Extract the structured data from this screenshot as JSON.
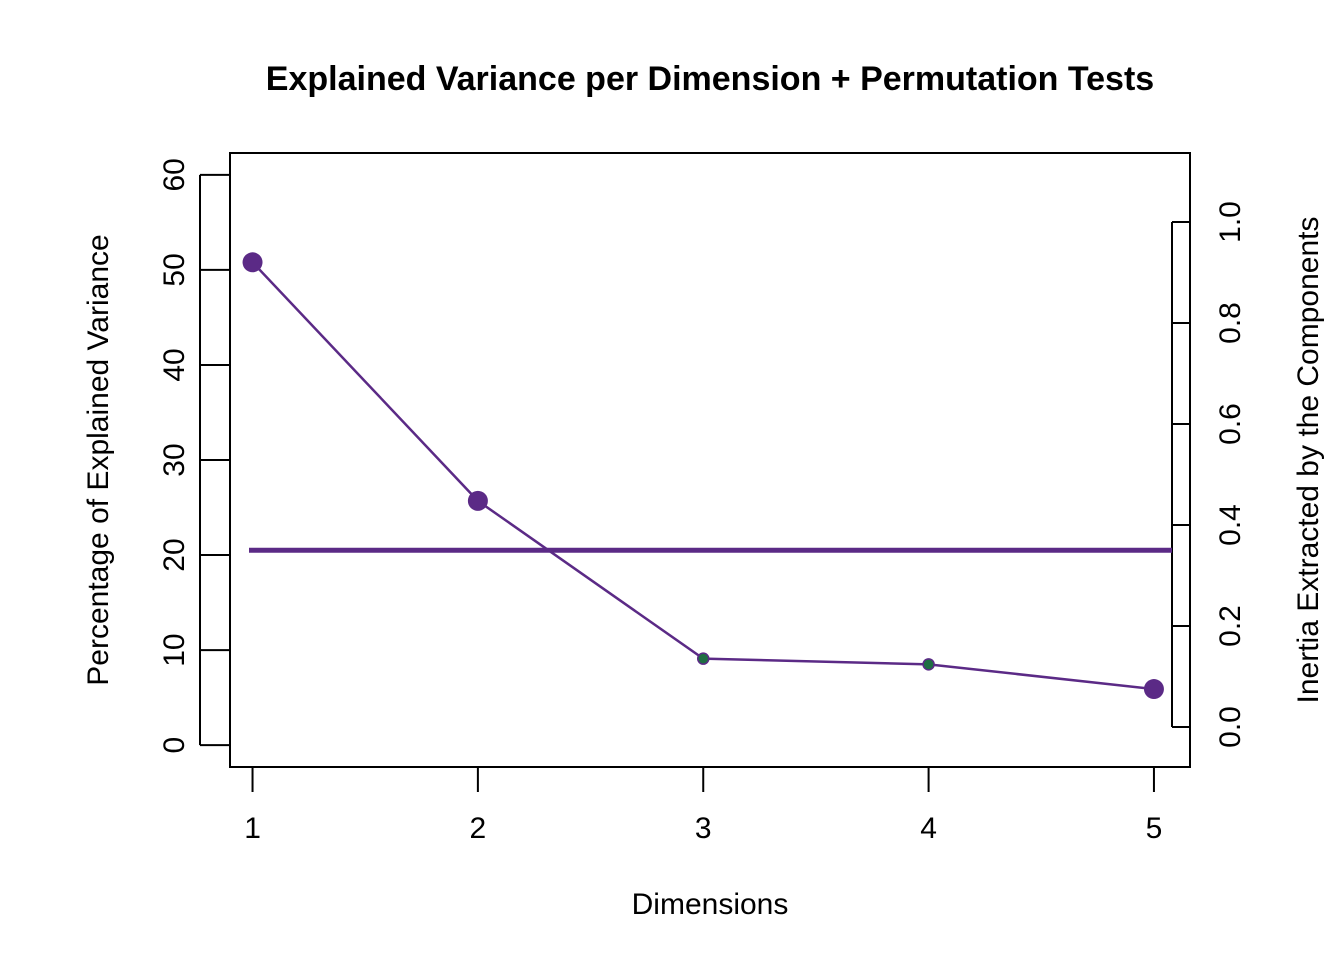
{
  "chart_data": {
    "type": "line",
    "title": "Explained Variance per Dimension + Permutation Tests",
    "xlabel": "Dimensions",
    "ylabel": "Percentage of Explained Variance",
    "y2label": "Inertia Extracted by the Components",
    "x": [
      1,
      2,
      3,
      4,
      5
    ],
    "xlim": [
      0.9,
      5.16
    ],
    "ylim": [
      -2.3,
      62.3
    ],
    "y2lim": [
      0,
      1
    ],
    "x_ticks": [
      "1",
      "2",
      "3",
      "4",
      "5"
    ],
    "y_ticks": [
      "0",
      "10",
      "20",
      "30",
      "40",
      "50",
      "60"
    ],
    "y2_ticks": [
      "0.0",
      "0.2",
      "0.4",
      "0.6",
      "0.8",
      "1.0"
    ],
    "series": [
      {
        "values": [
          50.8,
          25.7,
          9.1,
          8.5,
          5.9
        ],
        "significant": [
          true,
          true,
          false,
          false,
          true
        ],
        "line_color": "#5B2A86",
        "significant_color": "#5B2A86",
        "nonsignificant_color": "#1F6E43"
      }
    ],
    "reference_line": {
      "y": 20.5,
      "color": "#5B2A86"
    },
    "grid": false,
    "legend": "none"
  }
}
